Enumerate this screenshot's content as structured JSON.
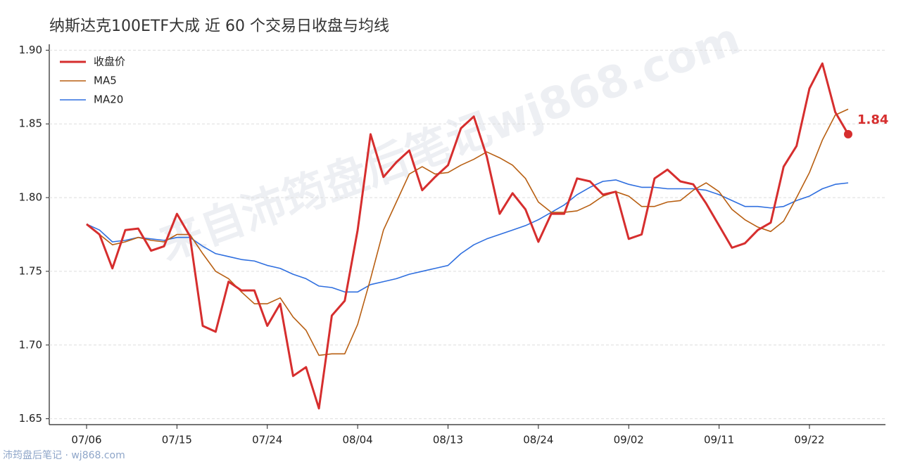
{
  "chart_data": {
    "type": "line",
    "title": "纳斯达克100ETF大成 近 60 个交易日收盘与均线",
    "watermark": "来自沛筠盘后笔记wj868.com",
    "footer": "沛筠盘后笔记 · wj868.com",
    "categories": [
      "07/06",
      null,
      null,
      null,
      null,
      null,
      null,
      "07/15",
      null,
      null,
      null,
      null,
      null,
      null,
      "07/24",
      null,
      null,
      null,
      null,
      null,
      null,
      "08/04",
      null,
      null,
      null,
      null,
      null,
      null,
      "08/13",
      null,
      null,
      null,
      null,
      null,
      null,
      "08/24",
      null,
      null,
      null,
      null,
      null,
      null,
      "09/02",
      null,
      null,
      null,
      null,
      null,
      null,
      "09/11",
      null,
      null,
      null,
      null,
      null,
      null,
      "09/22",
      null,
      null,
      null
    ],
    "series": [
      {
        "name": "收盘价",
        "color": "#d62e2e",
        "width": 3,
        "end_marker": true,
        "values": [
          1.782,
          1.775,
          1.752,
          1.778,
          1.779,
          1.764,
          1.767,
          1.789,
          1.774,
          1.713,
          1.709,
          1.743,
          1.737,
          1.737,
          1.713,
          1.728,
          1.679,
          1.685,
          1.657,
          1.72,
          1.73,
          1.778,
          1.843,
          1.814,
          1.824,
          1.832,
          1.805,
          1.814,
          1.822,
          1.847,
          1.855,
          1.828,
          1.789,
          1.803,
          1.792,
          1.77,
          1.789,
          1.789,
          1.813,
          1.811,
          1.802,
          1.804,
          1.772,
          1.775,
          1.813,
          1.819,
          1.811,
          1.809,
          1.796,
          1.781,
          1.766,
          1.769,
          1.778,
          1.783,
          1.821,
          1.835,
          1.874,
          1.891,
          1.858,
          1.843
        ],
        "value_labels": [
          null,
          null,
          null,
          null,
          null,
          null,
          null,
          null,
          null,
          null,
          null,
          null,
          null,
          null,
          null,
          null,
          null,
          null,
          null,
          null,
          null,
          null,
          null,
          null,
          null,
          null,
          null,
          null,
          null,
          null,
          null,
          null,
          null,
          null,
          null,
          null,
          null,
          null,
          null,
          null,
          null,
          null,
          null,
          null,
          null,
          null,
          null,
          null,
          null,
          null,
          null,
          null,
          null,
          null,
          null,
          null,
          null,
          null,
          null,
          "1.84"
        ]
      },
      {
        "name": "MA5",
        "color": "#b85f12",
        "width": 1.6,
        "values": [
          1.782,
          1.775,
          1.768,
          1.77,
          1.773,
          1.771,
          1.77,
          1.775,
          1.775,
          1.762,
          1.75,
          1.745,
          1.736,
          1.728,
          1.728,
          1.732,
          1.719,
          1.71,
          1.693,
          1.694,
          1.694,
          1.714,
          1.745,
          1.778,
          1.797,
          1.816,
          1.821,
          1.816,
          1.817,
          1.822,
          1.826,
          1.831,
          1.827,
          1.822,
          1.813,
          1.797,
          1.79,
          1.79,
          1.791,
          1.795,
          1.801,
          1.804,
          1.801,
          1.794,
          1.794,
          1.797,
          1.798,
          1.805,
          1.81,
          1.804,
          1.792,
          1.785,
          1.78,
          1.777,
          1.784,
          1.8,
          1.817,
          1.839,
          1.856,
          1.86
        ]
      },
      {
        "name": "MA20",
        "color": "#2f6fdf",
        "width": 1.6,
        "values": [
          1.782,
          1.778,
          1.77,
          1.771,
          1.773,
          1.772,
          1.771,
          1.773,
          1.773,
          1.767,
          1.762,
          1.76,
          1.758,
          1.757,
          1.754,
          1.752,
          1.748,
          1.745,
          1.74,
          1.739,
          1.736,
          1.736,
          1.741,
          1.743,
          1.745,
          1.748,
          1.75,
          1.752,
          1.754,
          1.762,
          1.768,
          1.772,
          1.775,
          1.778,
          1.781,
          1.785,
          1.79,
          1.795,
          1.802,
          1.807,
          1.811,
          1.812,
          1.809,
          1.807,
          1.807,
          1.806,
          1.806,
          1.806,
          1.805,
          1.802,
          1.798,
          1.794,
          1.794,
          1.793,
          1.794,
          1.798,
          1.801,
          1.806,
          1.809,
          1.81
        ]
      }
    ],
    "ylim": [
      1.646,
      1.904
    ],
    "yticks": [
      1.65,
      {
        "value": 1.7,
        "label": "1.70"
      },
      1.75,
      {
        "value": 1.8,
        "label": "1.80"
      },
      1.85,
      {
        "value": 1.9,
        "label": "1.90"
      }
    ],
    "grid": true,
    "legend": "upper-left"
  }
}
